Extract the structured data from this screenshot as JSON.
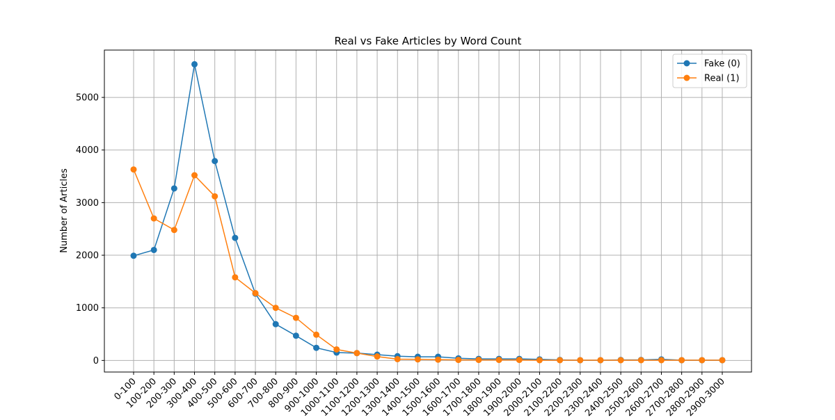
{
  "chart_data": {
    "type": "line",
    "title": "Real vs Fake Articles by Word Count",
    "xlabel": "",
    "ylabel": "Number of Articles",
    "categories": [
      "0-100",
      "100-200",
      "200-300",
      "300-400",
      "400-500",
      "500-600",
      "600-700",
      "700-800",
      "800-900",
      "900-1000",
      "1000-1100",
      "1100-1200",
      "1200-1300",
      "1300-1400",
      "1400-1500",
      "1500-1600",
      "1600-1700",
      "1700-1800",
      "1800-1900",
      "1900-2000",
      "2000-2100",
      "2100-2200",
      "2200-2300",
      "2300-2400",
      "2400-2500",
      "2500-2600",
      "2600-2700",
      "2700-2800",
      "2800-2900",
      "2900-3000"
    ],
    "series": [
      {
        "name": "Fake (0)",
        "color": "#1f77b4",
        "values": [
          1990,
          2100,
          3270,
          5630,
          3790,
          2330,
          1270,
          690,
          470,
          240,
          150,
          140,
          110,
          80,
          70,
          70,
          40,
          30,
          30,
          30,
          20,
          10,
          5,
          5,
          10,
          10,
          20,
          5,
          5,
          5
        ]
      },
      {
        "name": "Real (1)",
        "color": "#ff7f0e",
        "values": [
          3630,
          2700,
          2480,
          3520,
          3120,
          1580,
          1280,
          1000,
          810,
          490,
          210,
          140,
          75,
          25,
          20,
          15,
          10,
          10,
          10,
          10,
          5,
          5,
          5,
          5,
          5,
          5,
          5,
          5,
          5,
          5
        ]
      }
    ],
    "ylim": [
      -220,
      5900
    ],
    "yticks": [
      0,
      1000,
      2000,
      3000,
      4000,
      5000
    ],
    "grid": true,
    "legend_position": "top-right"
  }
}
